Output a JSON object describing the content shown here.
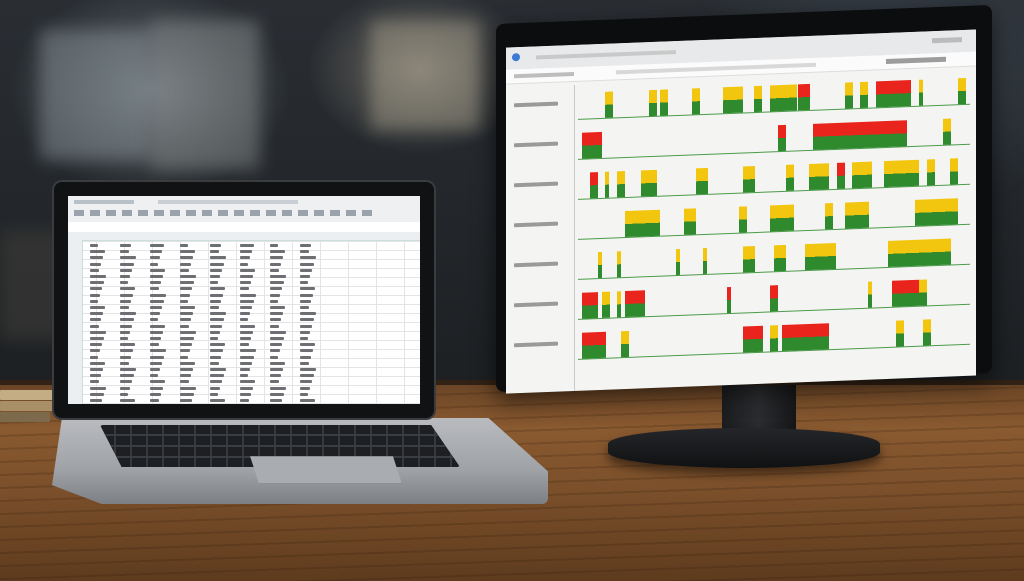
{
  "scene": {
    "colors": {
      "bar_red": "#e8241c",
      "bar_yellow": "#f2c60e",
      "bar_green": "#2f8a2e",
      "desk_wood": "#8a5a30"
    }
  },
  "monitor": {
    "gantt_rows": [
      {
        "bars": [
          {
            "start": 0.07,
            "len": 0.02,
            "c": "yg"
          },
          {
            "start": 0.18,
            "len": 0.02,
            "c": "yg"
          },
          {
            "start": 0.21,
            "len": 0.02,
            "c": "yg"
          },
          {
            "start": 0.29,
            "len": 0.02,
            "c": "yg"
          },
          {
            "start": 0.37,
            "len": 0.05,
            "c": "yg"
          },
          {
            "start": 0.45,
            "len": 0.02,
            "c": "yg"
          },
          {
            "start": 0.49,
            "len": 0.07,
            "c": "yg"
          },
          {
            "start": 0.56,
            "len": 0.03,
            "c": "rg"
          },
          {
            "start": 0.68,
            "len": 0.02,
            "c": "yg"
          },
          {
            "start": 0.72,
            "len": 0.02,
            "c": "yg"
          },
          {
            "start": 0.76,
            "len": 0.09,
            "c": "rg"
          },
          {
            "start": 0.87,
            "len": 0.01,
            "c": "yg"
          },
          {
            "start": 0.97,
            "len": 0.02,
            "c": "yg"
          }
        ]
      },
      {
        "bars": [
          {
            "start": 0.01,
            "len": 0.05,
            "c": "rg"
          },
          {
            "start": 0.51,
            "len": 0.02,
            "c": "rg"
          },
          {
            "start": 0.6,
            "len": 0.24,
            "c": "rg"
          },
          {
            "start": 0.93,
            "len": 0.02,
            "c": "yg"
          }
        ]
      },
      {
        "bars": [
          {
            "start": 0.03,
            "len": 0.02,
            "c": "rg"
          },
          {
            "start": 0.07,
            "len": 0.01,
            "c": "yg"
          },
          {
            "start": 0.1,
            "len": 0.02,
            "c": "yg"
          },
          {
            "start": 0.16,
            "len": 0.04,
            "c": "yg"
          },
          {
            "start": 0.3,
            "len": 0.03,
            "c": "yg"
          },
          {
            "start": 0.42,
            "len": 0.03,
            "c": "yg"
          },
          {
            "start": 0.53,
            "len": 0.02,
            "c": "yg"
          },
          {
            "start": 0.59,
            "len": 0.05,
            "c": "yg"
          },
          {
            "start": 0.66,
            "len": 0.02,
            "c": "rg"
          },
          {
            "start": 0.7,
            "len": 0.05,
            "c": "yg"
          },
          {
            "start": 0.78,
            "len": 0.09,
            "c": "yg"
          },
          {
            "start": 0.89,
            "len": 0.02,
            "c": "yg"
          },
          {
            "start": 0.95,
            "len": 0.02,
            "c": "yg"
          }
        ]
      },
      {
        "bars": [
          {
            "start": 0.12,
            "len": 0.09,
            "c": "yg"
          },
          {
            "start": 0.27,
            "len": 0.03,
            "c": "yg"
          },
          {
            "start": 0.41,
            "len": 0.02,
            "c": "yg"
          },
          {
            "start": 0.49,
            "len": 0.06,
            "c": "yg"
          },
          {
            "start": 0.63,
            "len": 0.02,
            "c": "yg"
          },
          {
            "start": 0.68,
            "len": 0.06,
            "c": "yg"
          },
          {
            "start": 0.86,
            "len": 0.11,
            "c": "yg"
          }
        ]
      },
      {
        "bars": [
          {
            "start": 0.05,
            "len": 0.01,
            "c": "yg"
          },
          {
            "start": 0.1,
            "len": 0.01,
            "c": "yg"
          },
          {
            "start": 0.25,
            "len": 0.01,
            "c": "yg"
          },
          {
            "start": 0.32,
            "len": 0.01,
            "c": "yg"
          },
          {
            "start": 0.42,
            "len": 0.03,
            "c": "yg"
          },
          {
            "start": 0.5,
            "len": 0.03,
            "c": "yg"
          },
          {
            "start": 0.58,
            "len": 0.08,
            "c": "yg"
          },
          {
            "start": 0.79,
            "len": 0.16,
            "c": "yg"
          }
        ]
      },
      {
        "bars": [
          {
            "start": 0.01,
            "len": 0.04,
            "c": "rg"
          },
          {
            "start": 0.06,
            "len": 0.02,
            "c": "yg"
          },
          {
            "start": 0.1,
            "len": 0.01,
            "c": "yg"
          },
          {
            "start": 0.12,
            "len": 0.05,
            "c": "rg"
          },
          {
            "start": 0.38,
            "len": 0.01,
            "c": "rg"
          },
          {
            "start": 0.49,
            "len": 0.02,
            "c": "rg"
          },
          {
            "start": 0.74,
            "len": 0.01,
            "c": "yg"
          },
          {
            "start": 0.8,
            "len": 0.07,
            "c": "rg"
          },
          {
            "start": 0.87,
            "len": 0.02,
            "c": "yg"
          }
        ]
      },
      {
        "bars": [
          {
            "start": 0.01,
            "len": 0.06,
            "c": "rg"
          },
          {
            "start": 0.11,
            "len": 0.02,
            "c": "yg"
          },
          {
            "start": 0.42,
            "len": 0.05,
            "c": "rg"
          },
          {
            "start": 0.49,
            "len": 0.02,
            "c": "yg"
          },
          {
            "start": 0.52,
            "len": 0.12,
            "c": "rg"
          },
          {
            "start": 0.81,
            "len": 0.02,
            "c": "yg"
          },
          {
            "start": 0.88,
            "len": 0.02,
            "c": "yg"
          }
        ]
      }
    ]
  },
  "laptop": {
    "sheet_rows": 26,
    "sheet_cols": 8
  }
}
